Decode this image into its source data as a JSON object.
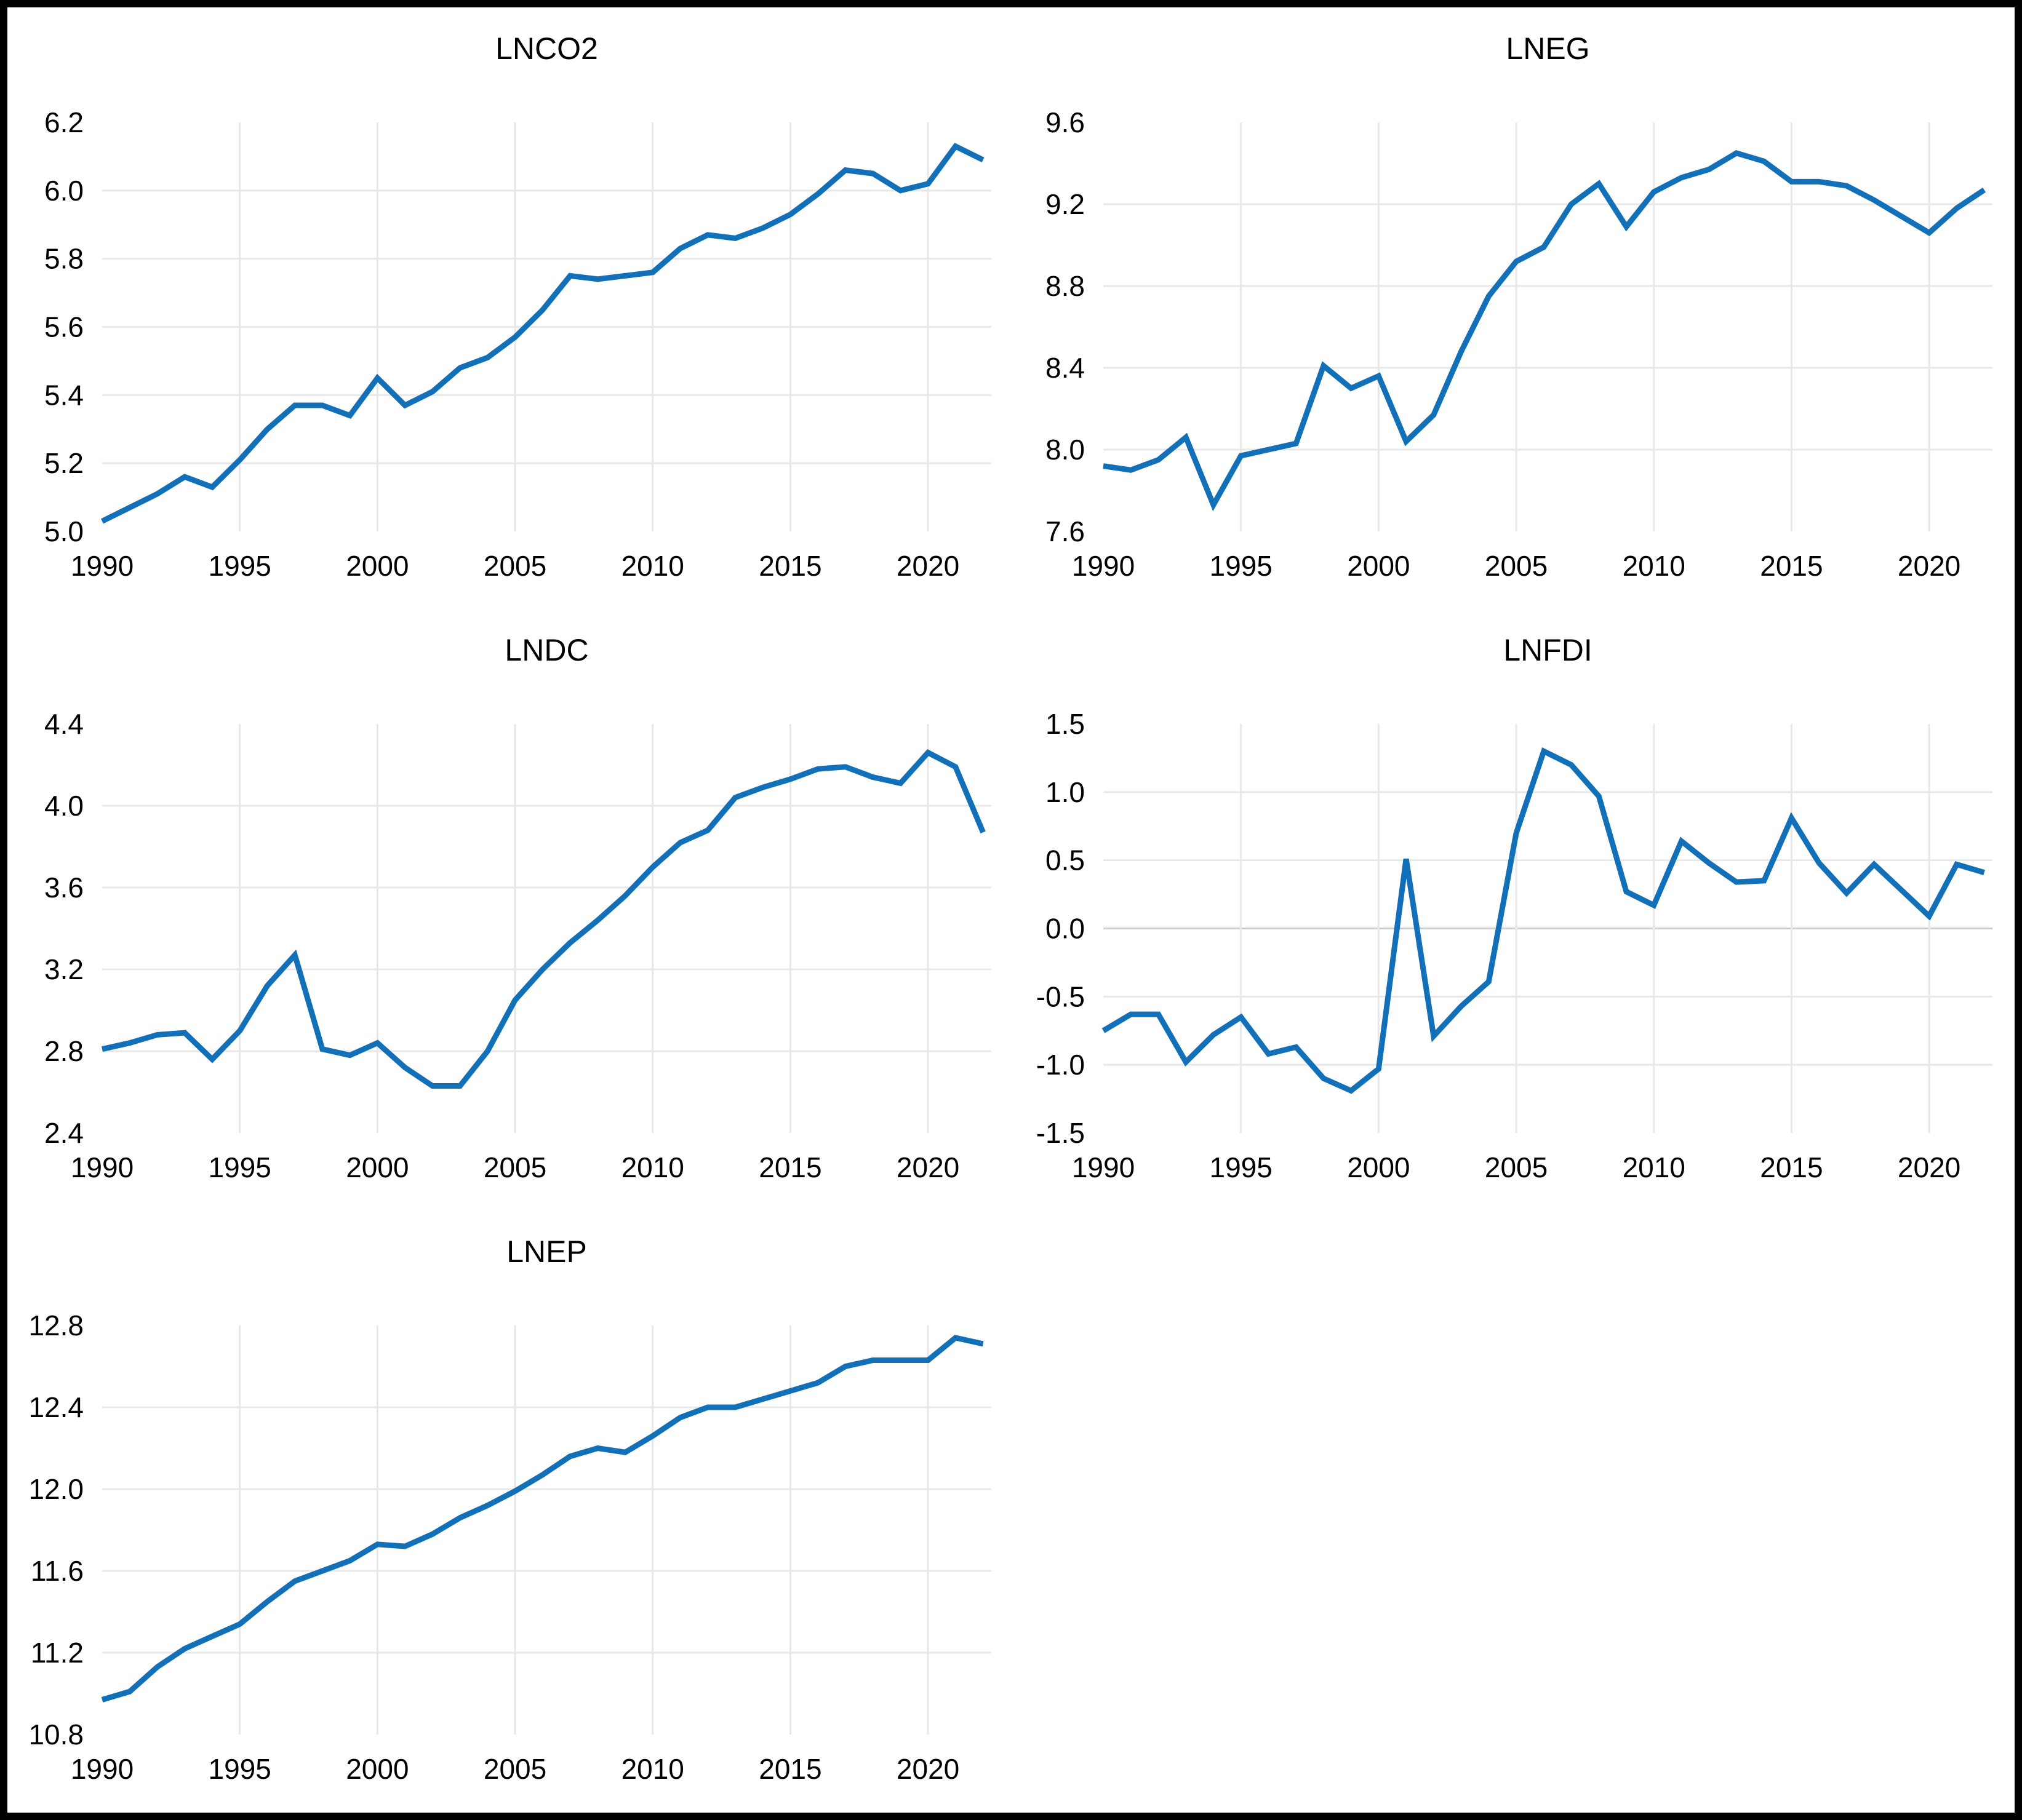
{
  "figure": {
    "background": "#ffffff",
    "border_color": "#000000",
    "line_color": "#1170B8",
    "grid_color": "#E8E8E8",
    "zero_grid_color": "#D0D0D0",
    "text_color": "#000000",
    "tick_font_size": 46,
    "title_font_size": 50
  },
  "chart_data": [
    {
      "type": "line",
      "title": "LNCO2",
      "xlabel": "",
      "ylabel": "",
      "grid": true,
      "legend": "none",
      "xlim": [
        1990,
        2022.3
      ],
      "ylim": [
        5.0,
        6.2
      ],
      "xtick_values": [
        1990,
        1995,
        2000,
        2005,
        2010,
        2015,
        2020
      ],
      "xtick_labels": [
        "1990",
        "1995",
        "2000",
        "2005",
        "2010",
        "2015",
        "2020"
      ],
      "ytick_values": [
        5.0,
        5.2,
        5.4,
        5.6,
        5.8,
        6.0,
        6.2
      ],
      "ytick_labels": [
        "5.0",
        "5.2",
        "5.4",
        "5.6",
        "5.8",
        "6.0",
        "6.2"
      ],
      "emphasize_zero": false,
      "x": [
        1990,
        1991,
        1992,
        1993,
        1994,
        1995,
        1996,
        1997,
        1998,
        1999,
        2000,
        2001,
        2002,
        2003,
        2004,
        2005,
        2006,
        2007,
        2008,
        2009,
        2010,
        2011,
        2012,
        2013,
        2014,
        2015,
        2016,
        2017,
        2018,
        2019,
        2020,
        2021,
        2022
      ],
      "values": [
        5.03,
        5.07,
        5.11,
        5.16,
        5.13,
        5.21,
        5.3,
        5.37,
        5.37,
        5.34,
        5.45,
        5.37,
        5.41,
        5.48,
        5.51,
        5.57,
        5.65,
        5.75,
        5.74,
        5.75,
        5.76,
        5.83,
        5.87,
        5.86,
        5.89,
        5.93,
        5.99,
        6.06,
        6.05,
        6.0,
        6.02,
        6.13,
        6.09
      ]
    },
    {
      "type": "line",
      "title": "LNEG",
      "xlabel": "",
      "ylabel": "",
      "grid": true,
      "legend": "none",
      "xlim": [
        1990,
        2022.3
      ],
      "ylim": [
        7.6,
        9.6
      ],
      "xtick_values": [
        1990,
        1995,
        2000,
        2005,
        2010,
        2015,
        2020
      ],
      "xtick_labels": [
        "1990",
        "1995",
        "2000",
        "2005",
        "2010",
        "2015",
        "2020"
      ],
      "ytick_values": [
        7.6,
        8.0,
        8.4,
        8.8,
        9.2,
        9.6
      ],
      "ytick_labels": [
        "7.6",
        "8.0",
        "8.4",
        "8.8",
        "9.2",
        "9.6"
      ],
      "emphasize_zero": false,
      "x": [
        1990,
        1991,
        1992,
        1993,
        1994,
        1995,
        1996,
        1997,
        1998,
        1999,
        2000,
        2001,
        2002,
        2003,
        2004,
        2005,
        2006,
        2007,
        2008,
        2009,
        2010,
        2011,
        2012,
        2013,
        2014,
        2015,
        2016,
        2017,
        2018,
        2019,
        2020,
        2021,
        2022
      ],
      "values": [
        7.92,
        7.9,
        7.95,
        8.06,
        7.73,
        7.97,
        8.0,
        8.03,
        8.41,
        8.3,
        8.36,
        8.04,
        8.17,
        8.48,
        8.75,
        8.92,
        8.99,
        9.2,
        9.3,
        9.09,
        9.26,
        9.33,
        9.37,
        9.45,
        9.41,
        9.31,
        9.31,
        9.29,
        9.22,
        9.14,
        9.06,
        9.18,
        9.27
      ]
    },
    {
      "type": "line",
      "title": "LNDC",
      "xlabel": "",
      "ylabel": "",
      "grid": true,
      "legend": "none",
      "xlim": [
        1990,
        2022.3
      ],
      "ylim": [
        2.4,
        4.4
      ],
      "xtick_values": [
        1990,
        1995,
        2000,
        2005,
        2010,
        2015,
        2020
      ],
      "xtick_labels": [
        "1990",
        "1995",
        "2000",
        "2005",
        "2010",
        "2015",
        "2020"
      ],
      "ytick_values": [
        2.4,
        2.8,
        3.2,
        3.6,
        4.0,
        4.4
      ],
      "ytick_labels": [
        "2.4",
        "2.8",
        "3.2",
        "3.6",
        "4.0",
        "4.4"
      ],
      "emphasize_zero": false,
      "x": [
        1990,
        1991,
        1992,
        1993,
        1994,
        1995,
        1996,
        1997,
        1998,
        1999,
        2000,
        2001,
        2002,
        2003,
        2004,
        2005,
        2006,
        2007,
        2008,
        2009,
        2010,
        2011,
        2012,
        2013,
        2014,
        2015,
        2016,
        2017,
        2018,
        2019,
        2020,
        2021,
        2022
      ],
      "values": [
        2.81,
        2.84,
        2.88,
        2.89,
        2.76,
        2.9,
        3.12,
        3.27,
        2.81,
        2.78,
        2.84,
        2.72,
        2.63,
        2.63,
        2.8,
        3.05,
        3.2,
        3.33,
        3.44,
        3.56,
        3.7,
        3.82,
        3.88,
        4.04,
        4.09,
        4.13,
        4.18,
        4.19,
        4.14,
        4.11,
        4.26,
        4.19,
        3.87
      ]
    },
    {
      "type": "line",
      "title": "LNFDI",
      "xlabel": "",
      "ylabel": "",
      "grid": true,
      "legend": "none",
      "xlim": [
        1990,
        2022.3
      ],
      "ylim": [
        -1.5,
        1.5
      ],
      "xtick_values": [
        1990,
        1995,
        2000,
        2005,
        2010,
        2015,
        2020
      ],
      "xtick_labels": [
        "1990",
        "1995",
        "2000",
        "2005",
        "2010",
        "2015",
        "2020"
      ],
      "ytick_values": [
        -1.5,
        -1.0,
        -0.5,
        0.0,
        0.5,
        1.0,
        1.5
      ],
      "ytick_labels": [
        "-1.5",
        "-1.0",
        "-0.5",
        "0.0",
        "0.5",
        "1.0",
        "1.5"
      ],
      "emphasize_zero": true,
      "x": [
        1990,
        1991,
        1992,
        1993,
        1994,
        1995,
        1996,
        1997,
        1998,
        1999,
        2000,
        2001,
        2002,
        2003,
        2004,
        2005,
        2006,
        2007,
        2008,
        2009,
        2010,
        2011,
        2012,
        2013,
        2014,
        2015,
        2016,
        2017,
        2018,
        2019,
        2020,
        2021,
        2022
      ],
      "values": [
        -0.75,
        -0.63,
        -0.63,
        -0.98,
        -0.78,
        -0.65,
        -0.92,
        -0.87,
        -1.1,
        -1.19,
        -1.03,
        0.51,
        -0.79,
        -0.57,
        -0.39,
        0.7,
        1.3,
        1.2,
        0.97,
        0.27,
        0.17,
        0.64,
        0.48,
        0.34,
        0.35,
        0.81,
        0.48,
        0.26,
        0.47,
        0.28,
        0.09,
        0.47,
        0.41
      ]
    },
    {
      "type": "line",
      "title": "LNEP",
      "xlabel": "",
      "ylabel": "",
      "grid": true,
      "legend": "none",
      "xlim": [
        1990,
        2022.3
      ],
      "ylim": [
        10.8,
        12.8
      ],
      "xtick_values": [
        1990,
        1995,
        2000,
        2005,
        2010,
        2015,
        2020
      ],
      "xtick_labels": [
        "1990",
        "1995",
        "2000",
        "2005",
        "2010",
        "2015",
        "2020"
      ],
      "ytick_values": [
        10.8,
        11.2,
        11.6,
        12.0,
        12.4,
        12.8
      ],
      "ytick_labels": [
        "10.8",
        "11.2",
        "11.6",
        "12.0",
        "12.4",
        "12.8"
      ],
      "emphasize_zero": false,
      "x": [
        1990,
        1991,
        1992,
        1993,
        1994,
        1995,
        1996,
        1997,
        1998,
        1999,
        2000,
        2001,
        2002,
        2003,
        2004,
        2005,
        2006,
        2007,
        2008,
        2009,
        2010,
        2011,
        2012,
        2013,
        2014,
        2015,
        2016,
        2017,
        2018,
        2019,
        2020,
        2021,
        2022
      ],
      "values": [
        10.97,
        11.01,
        11.13,
        11.22,
        11.28,
        11.34,
        11.45,
        11.55,
        11.6,
        11.65,
        11.73,
        11.72,
        11.78,
        11.86,
        11.92,
        11.99,
        12.07,
        12.16,
        12.2,
        12.18,
        12.26,
        12.35,
        12.4,
        12.4,
        12.44,
        12.48,
        12.52,
        12.6,
        12.63,
        12.63,
        12.63,
        12.74,
        12.71
      ]
    }
  ]
}
